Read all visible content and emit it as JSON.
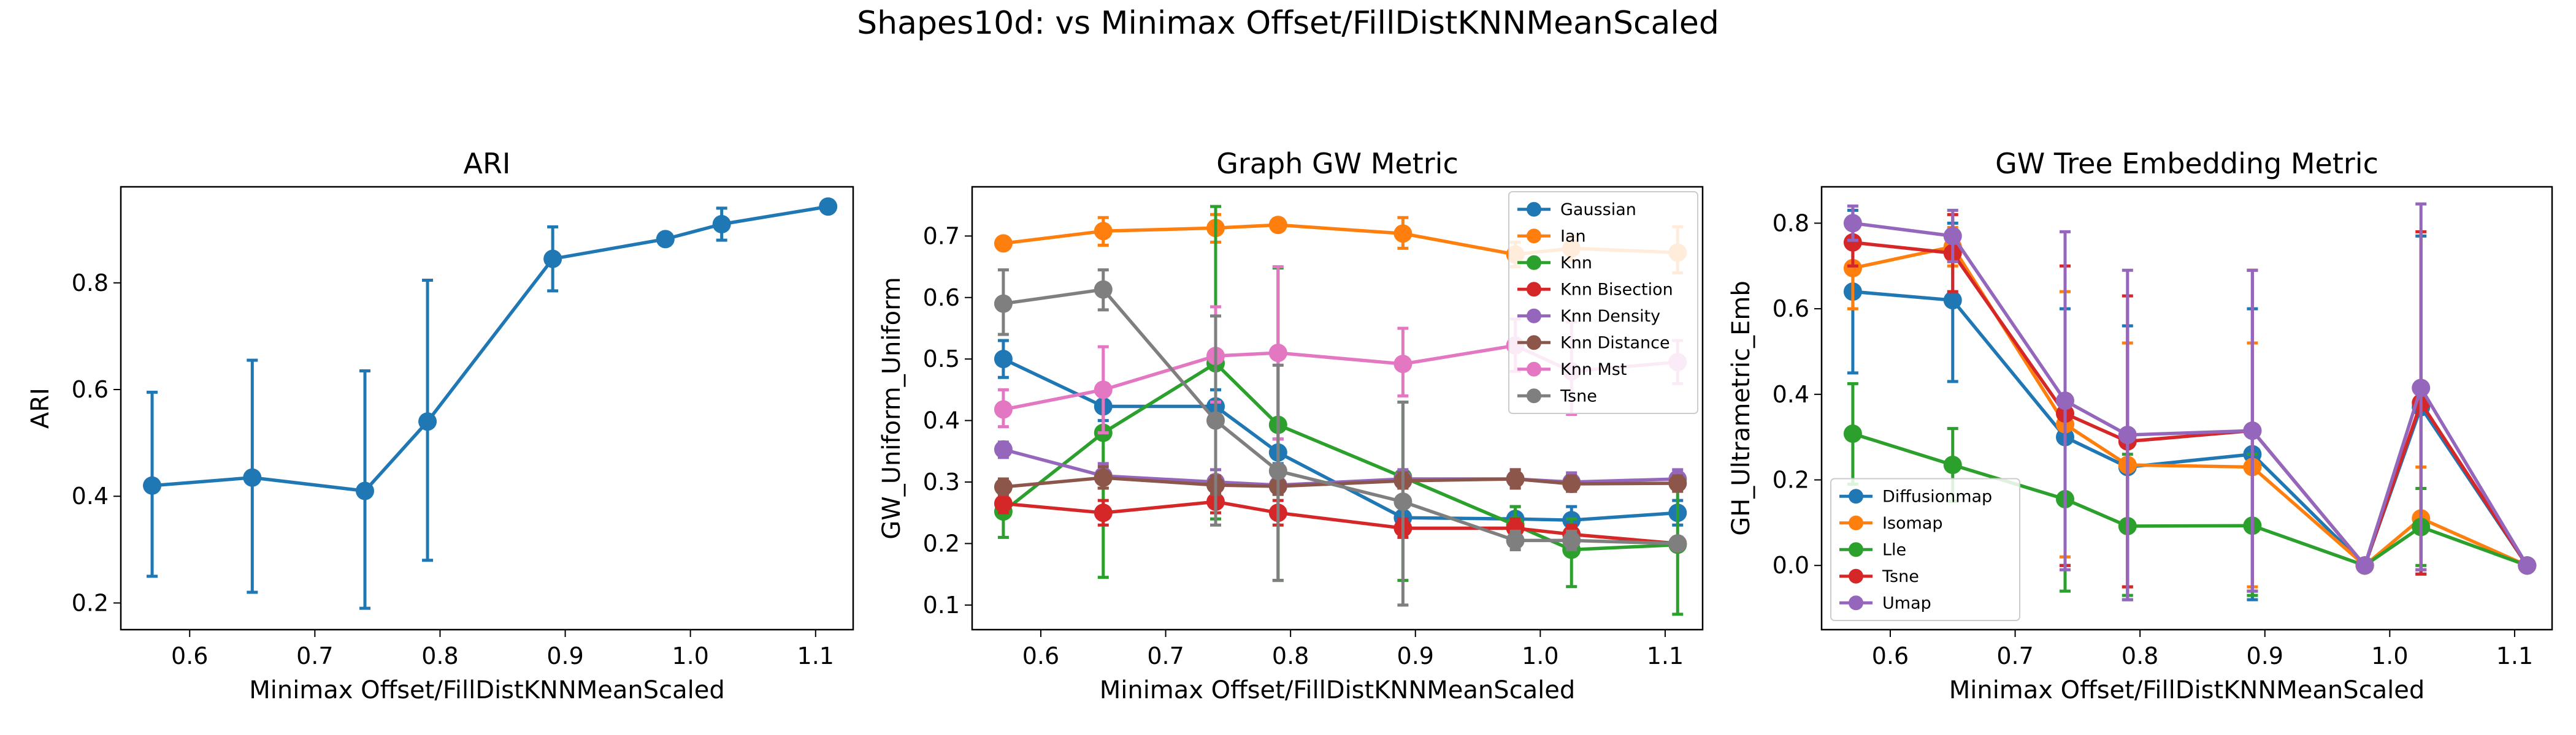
{
  "figure": {
    "suptitle": "Shapes10d: vs Minimax Offset/FillDistKNNMeanScaled"
  },
  "colors": {
    "blue": "#1f77b4",
    "orange": "#ff7f0e",
    "green": "#2ca02c",
    "red": "#d62728",
    "purple": "#9467bd",
    "brown": "#8c564b",
    "pink": "#e377c2",
    "gray": "#7f7f7f"
  },
  "chart_data": [
    {
      "type": "line",
      "title": "ARI",
      "xlabel": "Minimax Offset/FillDistKNNMeanScaled",
      "ylabel": "ARI",
      "xlim": [
        0.545,
        1.13
      ],
      "ylim": [
        0.15,
        0.98
      ],
      "xticks": [
        0.6,
        0.7,
        0.8,
        0.9,
        1.0,
        1.1
      ],
      "xtick_labels": [
        "0.6",
        "0.7",
        "0.8",
        "0.9",
        "1.0",
        "1.1"
      ],
      "yticks": [
        0.2,
        0.4,
        0.6,
        0.8
      ],
      "ytick_labels": [
        "0.2",
        "0.4",
        "0.6",
        "0.8"
      ],
      "x": [
        0.57,
        0.65,
        0.74,
        0.79,
        0.89,
        0.98,
        1.025,
        1.11
      ],
      "legend": null,
      "series": [
        {
          "color": "#1f77b4",
          "values": [
            0.42,
            0.435,
            0.41,
            0.54,
            0.845,
            0.882,
            0.91,
            0.943
          ],
          "err_low": [
            0.25,
            0.22,
            0.19,
            0.28,
            0.785,
            0.882,
            0.88,
            0.943
          ],
          "err_high": [
            0.595,
            0.655,
            0.635,
            0.805,
            0.905,
            0.882,
            0.94,
            0.943
          ]
        }
      ]
    },
    {
      "type": "line",
      "title": "Graph GW Metric",
      "xlabel": "Minimax Offset/FillDistKNNMeanScaled",
      "ylabel": "GW_Uniform_Uniform",
      "xlim": [
        0.545,
        1.13
      ],
      "ylim": [
        0.06,
        0.78
      ],
      "xticks": [
        0.6,
        0.7,
        0.8,
        0.9,
        1.0,
        1.1
      ],
      "xtick_labels": [
        "0.6",
        "0.7",
        "0.8",
        "0.9",
        "1.0",
        "1.1"
      ],
      "yticks": [
        0.1,
        0.2,
        0.3,
        0.4,
        0.5,
        0.6,
        0.7
      ],
      "ytick_labels": [
        "0.1",
        "0.2",
        "0.3",
        "0.4",
        "0.5",
        "0.6",
        "0.7"
      ],
      "x": [
        0.57,
        0.65,
        0.74,
        0.79,
        0.89,
        0.98,
        1.025,
        1.11
      ],
      "legend": "top-right",
      "series": [
        {
          "name": "Gaussian",
          "color": "#1f77b4",
          "values": [
            0.5,
            0.423,
            0.423,
            0.348,
            0.242,
            0.24,
            0.238,
            0.25
          ],
          "err_low": [
            0.47,
            0.4,
            0.4,
            0.33,
            0.22,
            0.22,
            0.22,
            0.23
          ],
          "err_high": [
            0.53,
            0.45,
            0.45,
            0.37,
            0.26,
            0.26,
            0.26,
            0.27
          ]
        },
        {
          "name": "Ian",
          "color": "#ff7f0e",
          "values": [
            0.688,
            0.708,
            0.713,
            0.718,
            0.704,
            0.67,
            0.68,
            0.673
          ],
          "err_low": [
            0.68,
            0.685,
            0.69,
            0.71,
            0.68,
            0.65,
            0.66,
            0.64
          ],
          "err_high": [
            0.695,
            0.73,
            0.735,
            0.725,
            0.73,
            0.69,
            0.7,
            0.715
          ]
        },
        {
          "name": "Knn",
          "color": "#2ca02c",
          "values": [
            0.252,
            0.38,
            0.493,
            0.393,
            0.308,
            0.23,
            0.19,
            0.198
          ],
          "err_low": [
            0.21,
            0.145,
            0.24,
            0.14,
            0.14,
            0.2,
            0.13,
            0.085
          ],
          "err_high": [
            0.3,
            0.46,
            0.748,
            0.648,
            0.43,
            0.26,
            0.24,
            0.3
          ]
        },
        {
          "name": "Knn Bisection",
          "color": "#d62728",
          "values": [
            0.265,
            0.25,
            0.268,
            0.25,
            0.225,
            0.225,
            0.215,
            0.2
          ],
          "err_low": [
            0.25,
            0.23,
            0.25,
            0.23,
            0.21,
            0.21,
            0.2,
            0.19
          ],
          "err_high": [
            0.28,
            0.27,
            0.285,
            0.27,
            0.24,
            0.24,
            0.23,
            0.21
          ]
        },
        {
          "name": "Knn Density",
          "color": "#9467bd",
          "values": [
            0.353,
            0.31,
            0.3,
            0.295,
            0.305,
            0.305,
            0.3,
            0.305
          ],
          "err_low": [
            0.34,
            0.29,
            0.28,
            0.28,
            0.29,
            0.29,
            0.285,
            0.29
          ],
          "err_high": [
            0.365,
            0.33,
            0.32,
            0.31,
            0.32,
            0.32,
            0.315,
            0.32
          ]
        },
        {
          "name": "Knn Distance",
          "color": "#8c564b",
          "values": [
            0.292,
            0.307,
            0.295,
            0.293,
            0.302,
            0.305,
            0.297,
            0.298
          ],
          "err_low": [
            0.28,
            0.29,
            0.28,
            0.28,
            0.29,
            0.29,
            0.285,
            0.285
          ],
          "err_high": [
            0.305,
            0.325,
            0.31,
            0.305,
            0.315,
            0.32,
            0.31,
            0.31
          ]
        },
        {
          "name": "Knn Mst",
          "color": "#e377c2",
          "values": [
            0.418,
            0.45,
            0.505,
            0.51,
            0.492,
            0.522,
            0.48,
            0.495
          ],
          "err_low": [
            0.39,
            0.38,
            0.43,
            0.37,
            0.44,
            0.48,
            0.41,
            0.46
          ],
          "err_high": [
            0.45,
            0.52,
            0.585,
            0.65,
            0.55,
            0.565,
            0.56,
            0.53
          ]
        },
        {
          "name": "Tsne",
          "color": "#7f7f7f",
          "values": [
            0.59,
            0.613,
            0.4,
            0.318,
            0.268,
            0.205,
            0.205,
            0.2
          ],
          "err_low": [
            0.54,
            0.58,
            0.23,
            0.14,
            0.1,
            0.19,
            0.19,
            0.19
          ],
          "err_high": [
            0.645,
            0.645,
            0.57,
            0.49,
            0.43,
            0.22,
            0.22,
            0.21
          ]
        }
      ]
    },
    {
      "type": "line",
      "title": "GW Tree Embedding Metric",
      "xlabel": "Minimax Offset/FillDistKNNMeanScaled",
      "ylabel": "GH_Ultrametric_Emb",
      "xlim": [
        0.545,
        1.13
      ],
      "ylim": [
        -0.15,
        0.885
      ],
      "xticks": [
        0.6,
        0.7,
        0.8,
        0.9,
        1.0,
        1.1
      ],
      "xtick_labels": [
        "0.6",
        "0.7",
        "0.8",
        "0.9",
        "1.0",
        "1.1"
      ],
      "yticks": [
        0.0,
        0.2,
        0.4,
        0.6,
        0.8
      ],
      "ytick_labels": [
        "0.0",
        "0.2",
        "0.4",
        "0.6",
        "0.8"
      ],
      "x": [
        0.57,
        0.65,
        0.74,
        0.79,
        0.89,
        0.98,
        1.025,
        1.11
      ],
      "legend": "lower-left",
      "series": [
        {
          "name": "Diffusionmap",
          "color": "#1f77b4",
          "values": [
            0.64,
            0.62,
            0.3,
            0.23,
            0.26,
            0.0,
            0.37,
            0.0
          ],
          "err_low": [
            0.45,
            0.43,
            0.0,
            -0.08,
            -0.08,
            0.0,
            -0.02,
            0.0
          ],
          "err_high": [
            0.83,
            0.8,
            0.6,
            0.56,
            0.6,
            0.0,
            0.77,
            0.0
          ]
        },
        {
          "name": "Isomap",
          "color": "#ff7f0e",
          "values": [
            0.695,
            0.745,
            0.33,
            0.235,
            0.23,
            0.0,
            0.11,
            0.0
          ],
          "err_low": [
            0.6,
            0.7,
            0.02,
            -0.05,
            -0.05,
            0.0,
            -0.01,
            0.0
          ],
          "err_high": [
            0.79,
            0.79,
            0.64,
            0.52,
            0.52,
            0.0,
            0.23,
            0.0
          ]
        },
        {
          "name": "Lle",
          "color": "#2ca02c",
          "values": [
            0.308,
            0.235,
            0.155,
            0.092,
            0.093,
            0.0,
            0.09,
            0.0
          ],
          "err_low": [
            0.19,
            0.15,
            -0.06,
            -0.07,
            -0.07,
            0.0,
            0.0,
            0.0
          ],
          "err_high": [
            0.425,
            0.32,
            0.37,
            0.26,
            0.26,
            0.0,
            0.18,
            0.0
          ]
        },
        {
          "name": "Tsne",
          "color": "#d62728",
          "values": [
            0.755,
            0.73,
            0.355,
            0.29,
            0.315,
            0.0,
            0.38,
            0.0
          ],
          "err_low": [
            0.7,
            0.64,
            0.0,
            -0.05,
            -0.06,
            0.0,
            -0.02,
            0.0
          ],
          "err_high": [
            0.81,
            0.82,
            0.7,
            0.63,
            0.69,
            0.0,
            0.78,
            0.0
          ]
        },
        {
          "name": "Umap",
          "color": "#9467bd",
          "values": [
            0.8,
            0.77,
            0.385,
            0.305,
            0.315,
            0.0,
            0.415,
            0.0
          ],
          "err_low": [
            0.76,
            0.71,
            -0.01,
            -0.08,
            -0.06,
            0.0,
            -0.01,
            0.0
          ],
          "err_high": [
            0.84,
            0.83,
            0.78,
            0.69,
            0.69,
            0.0,
            0.845,
            0.0
          ]
        }
      ]
    }
  ]
}
